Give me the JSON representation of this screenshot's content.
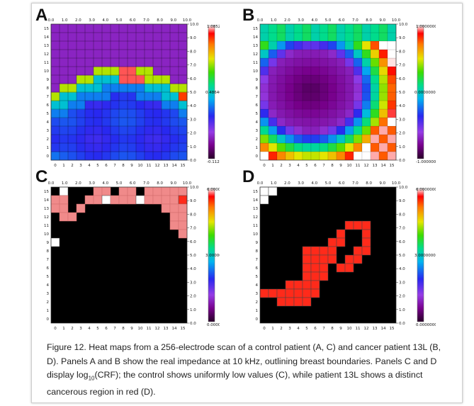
{
  "panels": [
    {
      "letter": "A",
      "type": "smooth",
      "x_ticks_top": [
        "0.0",
        "1.0",
        "2.0",
        "3.0",
        "4.0",
        "5.0",
        "6.0",
        "7.0",
        "8.0",
        "9.0",
        "10.0"
      ],
      "y_ticks_right": [
        "10.0",
        "9.0",
        "8.0",
        "7.0",
        "6.0",
        "5.0",
        "4.0",
        "3.0",
        "2.0",
        "1.0",
        "0.0"
      ],
      "colorbar_labels": {
        "max": "1.0852513",
        "mid": "0.4864634",
        "min": "-0.1123244"
      }
    },
    {
      "letter": "B",
      "type": "ring",
      "x_ticks_top": [
        "0.0",
        "1.0",
        "2.0",
        "3.0",
        "4.0",
        "5.0",
        "6.0",
        "7.0",
        "8.0",
        "9.0",
        "10.0"
      ],
      "y_ticks_right": [
        "10.0",
        "9.0",
        "8.0",
        "7.0",
        "6.0",
        "5.0",
        "4.0",
        "3.0",
        "2.0",
        "1.0",
        "0.0"
      ],
      "colorbar_labels": {
        "max": "1.0000000",
        "mid": "0.0000000",
        "min": "-1.0000000"
      }
    },
    {
      "letter": "C",
      "type": "mask",
      "x_ticks_top": [
        "0.0",
        "1.0",
        "2.0",
        "3.0",
        "4.0",
        "5.0",
        "6.0",
        "7.0",
        "8.0",
        "9.0",
        "10.0"
      ],
      "y_ticks_right": [
        "10.0",
        "9.0",
        "8.0",
        "7.0",
        "6.0",
        "5.0",
        "4.0",
        "3.0",
        "2.0",
        "1.0",
        "0.0"
      ],
      "colorbar_labels": {
        "max": "6.0000000",
        "mid": "3.0000000",
        "min": "0.0000000"
      },
      "cells": [
        [
          15,
          1,
          "white"
        ],
        [
          15,
          5,
          "pink"
        ],
        [
          15,
          6,
          "pink"
        ],
        [
          15,
          8,
          "pink"
        ],
        [
          15,
          9,
          "pink"
        ],
        [
          15,
          11,
          "pink"
        ],
        [
          15,
          12,
          "pink"
        ],
        [
          15,
          13,
          "pink"
        ],
        [
          15,
          14,
          "pink"
        ],
        [
          15,
          15,
          "pink"
        ],
        [
          14,
          0,
          "pink"
        ],
        [
          14,
          1,
          "pink"
        ],
        [
          14,
          4,
          "pink"
        ],
        [
          14,
          5,
          "pink"
        ],
        [
          14,
          6,
          "white"
        ],
        [
          14,
          7,
          "pink"
        ],
        [
          14,
          8,
          "pink"
        ],
        [
          14,
          9,
          "pink"
        ],
        [
          14,
          10,
          "white"
        ],
        [
          14,
          11,
          "pink"
        ],
        [
          14,
          12,
          "pink"
        ],
        [
          14,
          13,
          "pink"
        ],
        [
          14,
          14,
          "pink"
        ],
        [
          14,
          15,
          "red"
        ],
        [
          13,
          0,
          "pink"
        ],
        [
          13,
          1,
          "pink"
        ],
        [
          13,
          3,
          "pink"
        ],
        [
          13,
          13,
          "pink"
        ],
        [
          13,
          14,
          "pink"
        ],
        [
          13,
          15,
          "pink"
        ],
        [
          12,
          1,
          "pink"
        ],
        [
          12,
          2,
          "pink"
        ],
        [
          12,
          14,
          "pink"
        ],
        [
          12,
          15,
          "pink"
        ],
        [
          11,
          14,
          "pink"
        ],
        [
          11,
          15,
          "pink"
        ],
        [
          10,
          15,
          "pink"
        ],
        [
          9,
          0,
          "white"
        ]
      ]
    },
    {
      "letter": "D",
      "type": "mask",
      "x_ticks_top": [
        "0.0",
        "1.0",
        "2.0",
        "3.0",
        "4.0",
        "5.0",
        "6.0",
        "7.0",
        "8.0",
        "9.0",
        "10.0"
      ],
      "y_ticks_right": [
        "10.0",
        "9.0",
        "8.0",
        "7.0",
        "6.0",
        "5.0",
        "4.0",
        "3.0",
        "2.0",
        "1.0",
        "0.0"
      ],
      "colorbar_labels": {
        "max": "6.0000000",
        "mid": "3.0000000",
        "min": "0.0000000"
      },
      "cells": [
        [
          15,
          0,
          "white"
        ],
        [
          15,
          1,
          "white"
        ],
        [
          14,
          0,
          "white"
        ],
        [
          11,
          10,
          "red"
        ],
        [
          11,
          11,
          "red"
        ],
        [
          11,
          12,
          "red"
        ],
        [
          10,
          9,
          "red"
        ],
        [
          10,
          12,
          "red"
        ],
        [
          9,
          8,
          "red"
        ],
        [
          9,
          9,
          "red"
        ],
        [
          9,
          12,
          "red"
        ],
        [
          8,
          5,
          "red"
        ],
        [
          8,
          6,
          "red"
        ],
        [
          8,
          7,
          "red"
        ],
        [
          8,
          8,
          "red"
        ],
        [
          8,
          11,
          "red"
        ],
        [
          8,
          12,
          "red"
        ],
        [
          7,
          5,
          "red"
        ],
        [
          7,
          6,
          "red"
        ],
        [
          7,
          7,
          "red"
        ],
        [
          7,
          8,
          "red"
        ],
        [
          7,
          10,
          "red"
        ],
        [
          7,
          11,
          "red"
        ],
        [
          6,
          5,
          "red"
        ],
        [
          6,
          6,
          "red"
        ],
        [
          6,
          7,
          "red"
        ],
        [
          6,
          9,
          "red"
        ],
        [
          6,
          10,
          "red"
        ],
        [
          5,
          5,
          "red"
        ],
        [
          5,
          6,
          "red"
        ],
        [
          5,
          7,
          "red"
        ],
        [
          4,
          3,
          "red"
        ],
        [
          4,
          4,
          "red"
        ],
        [
          4,
          5,
          "red"
        ],
        [
          4,
          6,
          "red"
        ],
        [
          3,
          0,
          "red"
        ],
        [
          3,
          1,
          "red"
        ],
        [
          3,
          2,
          "red"
        ],
        [
          3,
          3,
          "red"
        ],
        [
          3,
          4,
          "red"
        ],
        [
          3,
          5,
          "red"
        ],
        [
          3,
          6,
          "red"
        ],
        [
          2,
          2,
          "red"
        ],
        [
          2,
          3,
          "red"
        ],
        [
          2,
          4,
          "red"
        ],
        [
          2,
          5,
          "red"
        ]
      ]
    }
  ],
  "axis_labels_bottom": [
    "0",
    "1",
    "2",
    "3",
    "4",
    "5",
    "6",
    "7",
    "8",
    "9",
    "10",
    "11",
    "12",
    "13",
    "14",
    "15"
  ],
  "axis_labels_left": [
    "15",
    "14",
    "13",
    "12",
    "11",
    "10",
    "9",
    "8",
    "7",
    "6",
    "5",
    "4",
    "3",
    "2",
    "1",
    "0"
  ],
  "caption": {
    "prefix": "Figure 12.",
    "part1": " Heat maps from a 256-electrode scan of a control patient (A, C) and cancer patient 13L (B, D). Panels A and B show the real impedance at 10 kHz, outlining breast boundaries. Panels C and D display log",
    "subscript": "10",
    "part2": "(CRF); the control shows uniformly low values (C), while patient 13L shows a distinct cancerous region in red (D)."
  }
}
